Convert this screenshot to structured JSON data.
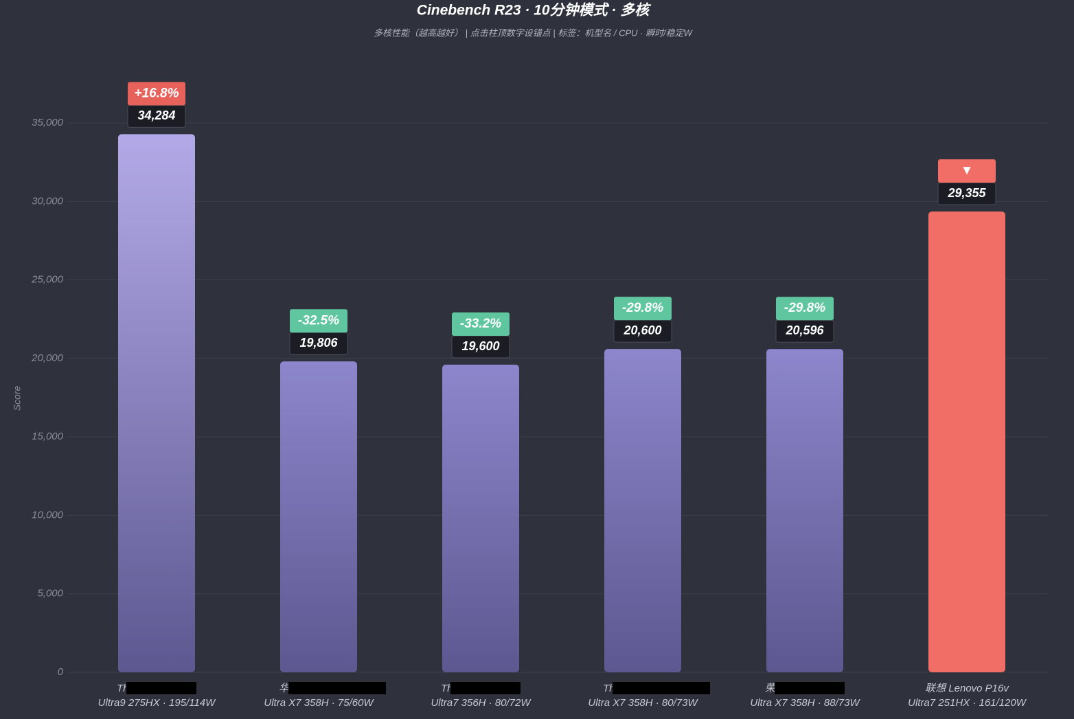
{
  "chart_data": {
    "type": "bar",
    "title": "Cinebench R23 · 10分钟模式 · 多核",
    "subtitle": "多核性能（越高越好） | 点击柱顶数字设锚点 | 标签：机型名 / CPU · 瞬时/稳定W",
    "y_label": "Score",
    "categories": [
      [
        "Th",
        "Ultra9 275HX · 195/114W"
      ],
      [
        "华",
        "Ultra X7 358H · 75/60W"
      ],
      [
        "Th",
        "Ultra7 356H · 80/72W"
      ],
      [
        "Th",
        "Ultra X7 358H · 80/73W"
      ],
      [
        "荣",
        "Ultra X7 358H · 88/73W"
      ],
      [
        "联想 Lenovo P16v",
        "Ultra7 251HX · 161/120W"
      ]
    ],
    "values": [
      34284,
      19806,
      19600,
      20600,
      20596,
      29355
    ],
    "value_labels": [
      "34,284",
      "19,806",
      "19,600",
      "20,600",
      "20,596",
      "29,355"
    ],
    "annotations": [
      "+16.8%",
      "-32.5%",
      "-33.2%",
      "-29.8%",
      "-29.8%",
      "▼"
    ],
    "annotation_colors": [
      "#e8625c",
      "#5fc6a0",
      "#5fc6a0",
      "#5fc6a0",
      "#5fc6a0",
      "#f06e66"
    ],
    "colors": [
      "#b3a9e8",
      "#8d86cc",
      "#8d86cc",
      "#8d86cc",
      "#8d86cc",
      "#f06e66"
    ],
    "ylim": [
      0,
      35000
    ],
    "yticks": [
      0,
      {
        "value": 5000,
        "label": "5,000"
      },
      {
        "value": 10000,
        "label": "10,000"
      },
      {
        "value": 15000,
        "label": "15,000"
      },
      {
        "value": 20000,
        "label": "20,000"
      },
      {
        "value": 25000,
        "label": "25,000"
      },
      {
        "value": 30000,
        "label": "30,000"
      },
      {
        "value": 35000,
        "label": "35,000"
      }
    ],
    "grid": true
  }
}
